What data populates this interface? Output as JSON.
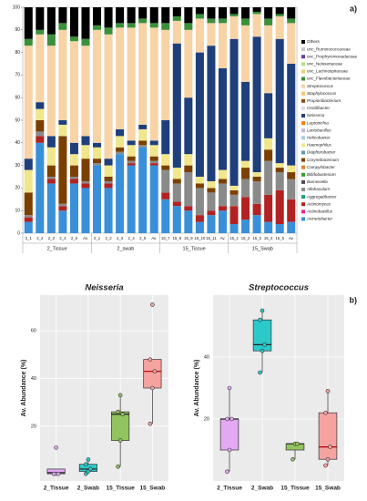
{
  "panel_labels": [
    "a)",
    "b)"
  ],
  "chart_data": [
    {
      "type": "stacked_bar",
      "groups": [
        "2_Tissue",
        "2_swab",
        "15_Tissue",
        "15_Swab"
      ],
      "categories": [
        "2_1",
        "2_2",
        "2_3",
        "2_4",
        "2_5",
        "Av.",
        "2_1",
        "2_2",
        "2_3",
        "2_4",
        "2_5",
        "Av.",
        "15_7",
        "15_8",
        "15_9",
        "15_10",
        "15_11",
        "Av.",
        "15_1",
        "15_2",
        "15_3",
        "15_4",
        "15_5",
        "Av."
      ],
      "ylim": [
        0,
        100
      ],
      "yticks": [
        0,
        10,
        20,
        30,
        40,
        50,
        60,
        70,
        80,
        90,
        100
      ],
      "series": [
        {
          "name": "Others",
          "color": "#000000",
          "values": [
            14,
            10,
            12,
            7,
            13,
            14,
            8,
            9,
            7,
            7,
            5,
            7,
            7,
            4,
            7,
            3,
            5,
            5,
            3,
            5,
            2,
            5,
            3,
            5
          ]
        },
        {
          "name": "unc_Ruminococcaceae",
          "color": "#c8c8c8",
          "values": [
            0,
            0,
            0,
            0,
            0,
            0,
            0,
            0,
            0,
            0,
            0,
            0,
            0,
            0,
            0,
            0,
            0,
            0,
            0,
            0,
            0,
            0,
            0,
            0
          ]
        },
        {
          "name": "unc_Porphyromonadaceae",
          "color": "#6a3d9a",
          "values": [
            0,
            0,
            0,
            0,
            0,
            0,
            0,
            0,
            0,
            0,
            0,
            0,
            0,
            0,
            0,
            0,
            0,
            0,
            0,
            0,
            0,
            0,
            0,
            0
          ]
        },
        {
          "name": "unc_Neisseriaceae",
          "color": "#b2df8a",
          "values": [
            0,
            0,
            0,
            0,
            0,
            0,
            0,
            0,
            0,
            0,
            0,
            0,
            0,
            0,
            0,
            0,
            0,
            0,
            0,
            0,
            0,
            0,
            0,
            0
          ]
        },
        {
          "name": "unc_Lachnospiraceae",
          "color": "#e6d070",
          "values": [
            0,
            0,
            0,
            0,
            0,
            0,
            0,
            0,
            0,
            0,
            0,
            0,
            0,
            0,
            0,
            0,
            0,
            0,
            0,
            0,
            0,
            0,
            0,
            0
          ]
        },
        {
          "name": "unc_Flavobacteriaceae",
          "color": "#3b8f3b",
          "values": [
            3,
            2,
            5,
            3,
            2,
            3,
            2,
            3,
            2,
            2,
            2,
            2,
            3,
            2,
            3,
            2,
            2,
            2,
            1,
            3,
            1,
            3,
            1,
            2
          ]
        },
        {
          "name": "Streptococcus",
          "color": "#f7d3a6",
          "values": [
            50,
            30,
            40,
            40,
            45,
            40,
            50,
            55,
            45,
            50,
            45,
            50,
            40,
            10,
            30,
            15,
            10,
            20,
            10,
            25,
            10,
            30,
            10,
            18
          ]
        },
        {
          "name": "Staphylococcus",
          "color": "#fdbf6f",
          "values": [
            0,
            0,
            0,
            0,
            0,
            0,
            0,
            0,
            0,
            0,
            0,
            0,
            0,
            0,
            0,
            0,
            0,
            0,
            0,
            0,
            0,
            0,
            0,
            0
          ]
        },
        {
          "name": "Propionibacterium",
          "color": "#8c510a",
          "values": [
            0,
            0,
            0,
            0,
            0,
            0,
            0,
            0,
            0,
            0,
            0,
            0,
            0,
            0,
            0,
            0,
            0,
            0,
            0,
            0,
            0,
            0,
            0,
            0
          ]
        },
        {
          "name": "Oscillibacter",
          "color": "#dddddd",
          "values": [
            0,
            0,
            0,
            0,
            0,
            0,
            0,
            0,
            0,
            0,
            0,
            0,
            0,
            0,
            0,
            0,
            0,
            0,
            0,
            0,
            0,
            0,
            0,
            0
          ]
        },
        {
          "name": "Neisseria",
          "color": "#1f3f7a",
          "values": [
            5,
            3,
            5,
            2,
            5,
            4,
            2,
            3,
            3,
            2,
            2,
            2,
            15,
            55,
            25,
            55,
            60,
            45,
            65,
            35,
            60,
            20,
            55,
            45
          ]
        },
        {
          "name": "Leptotrichia",
          "color": "#ff7f00",
          "values": [
            0,
            0,
            0,
            0,
            0,
            0,
            0,
            0,
            0,
            0,
            0,
            0,
            0,
            0,
            0,
            0,
            0,
            0,
            0,
            0,
            0,
            0,
            0,
            0
          ]
        },
        {
          "name": "Lactobacillus",
          "color": "#cab2d6",
          "values": [
            0,
            0,
            0,
            0,
            0,
            0,
            0,
            0,
            0,
            0,
            0,
            0,
            0,
            0,
            0,
            0,
            0,
            0,
            0,
            0,
            0,
            0,
            0,
            0
          ]
        },
        {
          "name": "Helicobacter",
          "color": "#a6cee3",
          "values": [
            0,
            0,
            0,
            0,
            0,
            0,
            0,
            0,
            0,
            0,
            0,
            0,
            0,
            0,
            0,
            0,
            0,
            0,
            0,
            0,
            0,
            0,
            0,
            0
          ]
        },
        {
          "name": "Haemophilus",
          "color": "#f0e68c",
          "values": [
            10,
            5,
            8,
            5,
            5,
            6,
            5,
            5,
            5,
            5,
            5,
            5,
            5,
            5,
            5,
            3,
            3,
            4,
            2,
            3,
            2,
            5,
            2,
            3
          ]
        },
        {
          "name": "Diaphorobacter",
          "color": "#5f9ea0",
          "values": [
            0,
            0,
            0,
            0,
            0,
            0,
            0,
            0,
            0,
            0,
            0,
            0,
            0,
            0,
            0,
            0,
            0,
            0,
            0,
            0,
            0,
            0,
            0,
            0
          ]
        },
        {
          "name": "Corynebacterium",
          "color": "#7b3f00",
          "values": [
            10,
            5,
            5,
            30,
            5,
            10,
            2,
            2,
            2,
            2,
            2,
            2,
            2,
            2,
            3,
            2,
            2,
            2,
            2,
            5,
            2,
            5,
            2,
            3
          ]
        },
        {
          "name": "Campylobacter",
          "color": "#e08030",
          "values": [
            0,
            0,
            0,
            0,
            0,
            0,
            0,
            0,
            0,
            0,
            0,
            0,
            0,
            0,
            0,
            0,
            0,
            0,
            0,
            0,
            0,
            0,
            0,
            0
          ]
        },
        {
          "name": "Bifidobacterium",
          "color": "#33a02c",
          "values": [
            0,
            0,
            0,
            0,
            0,
            0,
            0,
            0,
            0,
            0,
            0,
            0,
            0,
            0,
            0,
            0,
            0,
            0,
            0,
            0,
            0,
            0,
            0,
            0
          ]
        },
        {
          "name": "Barnesiella",
          "color": "#4d4d4d",
          "values": [
            0,
            0,
            0,
            0,
            0,
            0,
            0,
            0,
            0,
            0,
            0,
            0,
            0,
            0,
            0,
            0,
            0,
            0,
            0,
            0,
            0,
            0,
            0,
            0
          ]
        },
        {
          "name": "Allobaculum",
          "color": "#8a8a8a",
          "values": [
            1,
            2,
            1,
            1,
            1,
            1,
            1,
            1,
            1,
            1,
            1,
            1,
            10,
            8,
            15,
            12,
            8,
            10,
            5,
            8,
            10,
            15,
            8,
            9
          ]
        },
        {
          "name": "Aggregatibacter",
          "color": "#1b9e77",
          "values": [
            0,
            0,
            0,
            0,
            0,
            0,
            0,
            0,
            0,
            0,
            0,
            0,
            0,
            0,
            0,
            0,
            0,
            0,
            0,
            0,
            0,
            0,
            0,
            0
          ]
        },
        {
          "name": "Actinomyces",
          "color": "#b22222",
          "values": [
            2,
            3,
            2,
            2,
            2,
            2,
            0,
            2,
            0,
            1,
            0,
            1,
            3,
            2,
            2,
            3,
            2,
            2,
            8,
            10,
            5,
            12,
            15,
            10
          ]
        },
        {
          "name": "Actinobacillus",
          "color": "#e7298a",
          "values": [
            0,
            0,
            0,
            0,
            0,
            0,
            0,
            0,
            0,
            0,
            0,
            0,
            0,
            0,
            0,
            0,
            0,
            0,
            0,
            0,
            0,
            0,
            0,
            0
          ]
        },
        {
          "name": "Acinetobacter",
          "color": "#3a8fd9",
          "values": [
            5,
            40,
            22,
            10,
            22,
            20,
            30,
            20,
            35,
            30,
            38,
            30,
            15,
            12,
            10,
            5,
            8,
            10,
            4,
            6,
            8,
            5,
            4,
            5
          ]
        }
      ]
    },
    {
      "type": "box",
      "title": "Neisseria",
      "ylabel": "Av. Abundance (%)",
      "categories": [
        "2_Tissue",
        "2_Swab",
        "15_Tissue",
        "15_Swab"
      ],
      "colors": [
        "#e3a9f2",
        "#2cc9c9",
        "#93c35f",
        "#f4a3a0"
      ],
      "ylim": [
        -3,
        75
      ],
      "yticks": [
        20,
        40,
        60
      ],
      "boxes": [
        {
          "min": 0,
          "q1": 0,
          "median": 0.5,
          "q3": 2,
          "max": 2,
          "points": [
            0,
            0,
            0,
            0,
            11
          ]
        },
        {
          "min": 0,
          "q1": 1,
          "median": 2,
          "q3": 4,
          "max": 6,
          "points": [
            0,
            1,
            2,
            4,
            6
          ]
        },
        {
          "min": 3,
          "q1": 14,
          "median": 25,
          "q3": 26,
          "max": 33,
          "points": [
            3,
            14,
            25,
            26,
            33
          ]
        },
        {
          "min": 21,
          "q1": 36,
          "median": 43,
          "q3": 48,
          "max": 48,
          "points": [
            21,
            36,
            43,
            48,
            71
          ]
        }
      ]
    },
    {
      "type": "box",
      "title": "Streptococcus",
      "ylabel": "Av. Abundance (%)",
      "categories": [
        "2_Tissue",
        "2_Swab",
        "15_Tissue",
        "15_Swab"
      ],
      "colors": [
        "#e3a9f2",
        "#2cc9c9",
        "#93c35f",
        "#f4a3a0"
      ],
      "ylim": [
        0,
        60
      ],
      "yticks": [
        20,
        40
      ],
      "boxes": [
        {
          "min": 3,
          "q1": 10,
          "median": 20,
          "q3": 20,
          "max": 30,
          "points": [
            3,
            10,
            20,
            20,
            30
          ]
        },
        {
          "min": 35,
          "q1": 42,
          "median": 44,
          "q3": 52,
          "max": 55,
          "points": [
            35,
            42,
            44,
            52,
            55
          ]
        },
        {
          "min": 7,
          "q1": 10,
          "median": 12,
          "q3": 12,
          "max": 12,
          "points": [
            7,
            12,
            12
          ]
        },
        {
          "min": 5,
          "q1": 7,
          "median": 11,
          "q3": 22,
          "max": 29,
          "points": [
            5,
            7,
            11,
            22,
            29
          ]
        }
      ]
    }
  ]
}
